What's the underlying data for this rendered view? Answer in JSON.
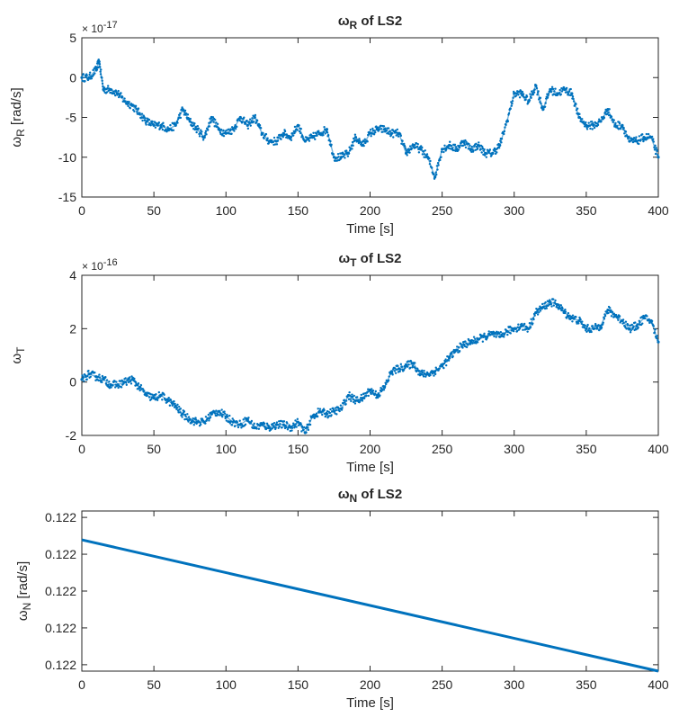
{
  "chart_data": [
    {
      "type": "scatter",
      "title": "ω_R of LS2",
      "title_main": "ω",
      "title_sub": "R",
      "title_rest": " of LS2",
      "xlabel": "Time [s]",
      "ylabel_main": "ω",
      "ylabel_sub": "R",
      "ylabel_rest": " [rad/s]",
      "multiplier_base": "× 10",
      "multiplier_exp": "-17",
      "xlim": [
        0,
        400
      ],
      "ylim": [
        -15,
        5
      ],
      "xticks": [
        "0",
        "50",
        "100",
        "150",
        "200",
        "250",
        "300",
        "350",
        "400"
      ],
      "yticks": [
        "-15",
        "-10",
        "-5",
        "0",
        "5"
      ],
      "yticks_values": [
        -15,
        -10,
        -5,
        0,
        5
      ],
      "grid": false,
      "color": "#0072BD",
      "x": [
        0,
        5,
        10,
        12,
        15,
        20,
        25,
        30,
        35,
        40,
        45,
        50,
        55,
        60,
        65,
        70,
        75,
        80,
        85,
        90,
        95,
        100,
        105,
        110,
        115,
        120,
        125,
        130,
        135,
        140,
        145,
        150,
        155,
        160,
        165,
        170,
        175,
        180,
        185,
        190,
        195,
        200,
        205,
        210,
        215,
        220,
        225,
        230,
        235,
        240,
        245,
        250,
        255,
        260,
        265,
        270,
        275,
        280,
        285,
        290,
        295,
        300,
        305,
        310,
        315,
        320,
        325,
        330,
        335,
        340,
        345,
        350,
        355,
        360,
        365,
        370,
        375,
        380,
        385,
        390,
        395,
        400
      ],
      "y": [
        0,
        0,
        1,
        2,
        -1.5,
        -1.5,
        -2,
        -3,
        -3.5,
        -4.5,
        -5.5,
        -6,
        -6,
        -6.5,
        -6,
        -4,
        -5.5,
        -6.5,
        -7.5,
        -5,
        -6.5,
        -7,
        -6.5,
        -5,
        -6,
        -5,
        -7,
        -8,
        -8,
        -7,
        -7.5,
        -6,
        -8,
        -7.5,
        -7,
        -6.5,
        -10,
        -10,
        -9.5,
        -7.5,
        -8.5,
        -7,
        -6.5,
        -6.5,
        -7,
        -7,
        -9.5,
        -8.5,
        -9,
        -10,
        -12.5,
        -9,
        -8.5,
        -9,
        -8,
        -9,
        -8.5,
        -9.5,
        -9.5,
        -8.5,
        -5.5,
        -2,
        -2,
        -3,
        -1,
        -4,
        -1.5,
        -2,
        -1.5,
        -2,
        -5,
        -6,
        -6,
        -5.5,
        -4,
        -6,
        -6,
        -8,
        -8,
        -7.5,
        -7.5,
        -10
      ]
    },
    {
      "type": "scatter",
      "title": "ω_T of LS2",
      "title_main": "ω",
      "title_sub": "T",
      "title_rest": " of LS2",
      "xlabel": "Time [s]",
      "ylabel_main": "ω",
      "ylabel_sub": "T",
      "ylabel_rest": "",
      "multiplier_base": "× 10",
      "multiplier_exp": "-16",
      "xlim": [
        0,
        400
      ],
      "ylim": [
        -2,
        4
      ],
      "xticks": [
        "0",
        "50",
        "100",
        "150",
        "200",
        "250",
        "300",
        "350",
        "400"
      ],
      "yticks": [
        "-2",
        "0",
        "2",
        "4"
      ],
      "yticks_values": [
        -2,
        0,
        2,
        4
      ],
      "grid": false,
      "color": "#0072BD",
      "x": [
        0,
        5,
        10,
        15,
        20,
        25,
        30,
        35,
        40,
        45,
        50,
        55,
        60,
        65,
        70,
        75,
        80,
        85,
        90,
        95,
        100,
        105,
        110,
        115,
        120,
        125,
        130,
        135,
        140,
        145,
        150,
        155,
        160,
        165,
        170,
        175,
        180,
        185,
        190,
        195,
        200,
        205,
        210,
        215,
        220,
        225,
        230,
        235,
        240,
        245,
        250,
        255,
        260,
        265,
        270,
        275,
        280,
        285,
        290,
        295,
        300,
        305,
        310,
        315,
        320,
        325,
        330,
        335,
        340,
        345,
        350,
        355,
        360,
        365,
        370,
        375,
        380,
        385,
        390,
        395,
        400
      ],
      "y": [
        0.1,
        0.3,
        0.2,
        0.1,
        -0.1,
        -0.1,
        0,
        0.1,
        -0.2,
        -0.5,
        -0.6,
        -0.5,
        -0.7,
        -0.9,
        -1.2,
        -1.4,
        -1.5,
        -1.5,
        -1.2,
        -1.1,
        -1.3,
        -1.5,
        -1.6,
        -1.4,
        -1.7,
        -1.6,
        -1.7,
        -1.6,
        -1.6,
        -1.7,
        -1.5,
        -1.9,
        -1.3,
        -1.1,
        -1.2,
        -1.1,
        -1.0,
        -0.5,
        -0.7,
        -0.6,
        -0.3,
        -0.5,
        -0.2,
        0.4,
        0.5,
        0.6,
        0.7,
        0.3,
        0.3,
        0.4,
        0.6,
        0.9,
        1.2,
        1.4,
        1.5,
        1.6,
        1.7,
        1.8,
        1.7,
        1.9,
        2.0,
        2.1,
        2.0,
        2.6,
        2.8,
        3.0,
        2.9,
        2.6,
        2.4,
        2.3,
        2.0,
        2.0,
        2.1,
        2.7,
        2.5,
        2.3,
        2.0,
        2.1,
        2.4,
        2.3,
        1.5
      ]
    },
    {
      "type": "line",
      "title": "ω_N of LS2",
      "title_main": "ω",
      "title_sub": "N",
      "title_rest": " of LS2",
      "xlabel": "Time [s]",
      "ylabel_main": "ω",
      "ylabel_sub": "N",
      "ylabel_rest": " [rad/s]",
      "xlim": [
        0,
        400
      ],
      "ylim": [
        0,
        1
      ],
      "xticks": [
        "0",
        "50",
        "100",
        "150",
        "200",
        "250",
        "300",
        "350",
        "400"
      ],
      "yticks": [
        "0.122",
        "0.122",
        "0.122",
        "0.122",
        "0.122"
      ],
      "yticks_values": [
        0.04,
        0.27,
        0.5,
        0.73,
        0.96
      ],
      "grid": false,
      "color": "#0072BD",
      "x": [
        0,
        400
      ],
      "y": [
        0.82,
        0
      ]
    }
  ]
}
